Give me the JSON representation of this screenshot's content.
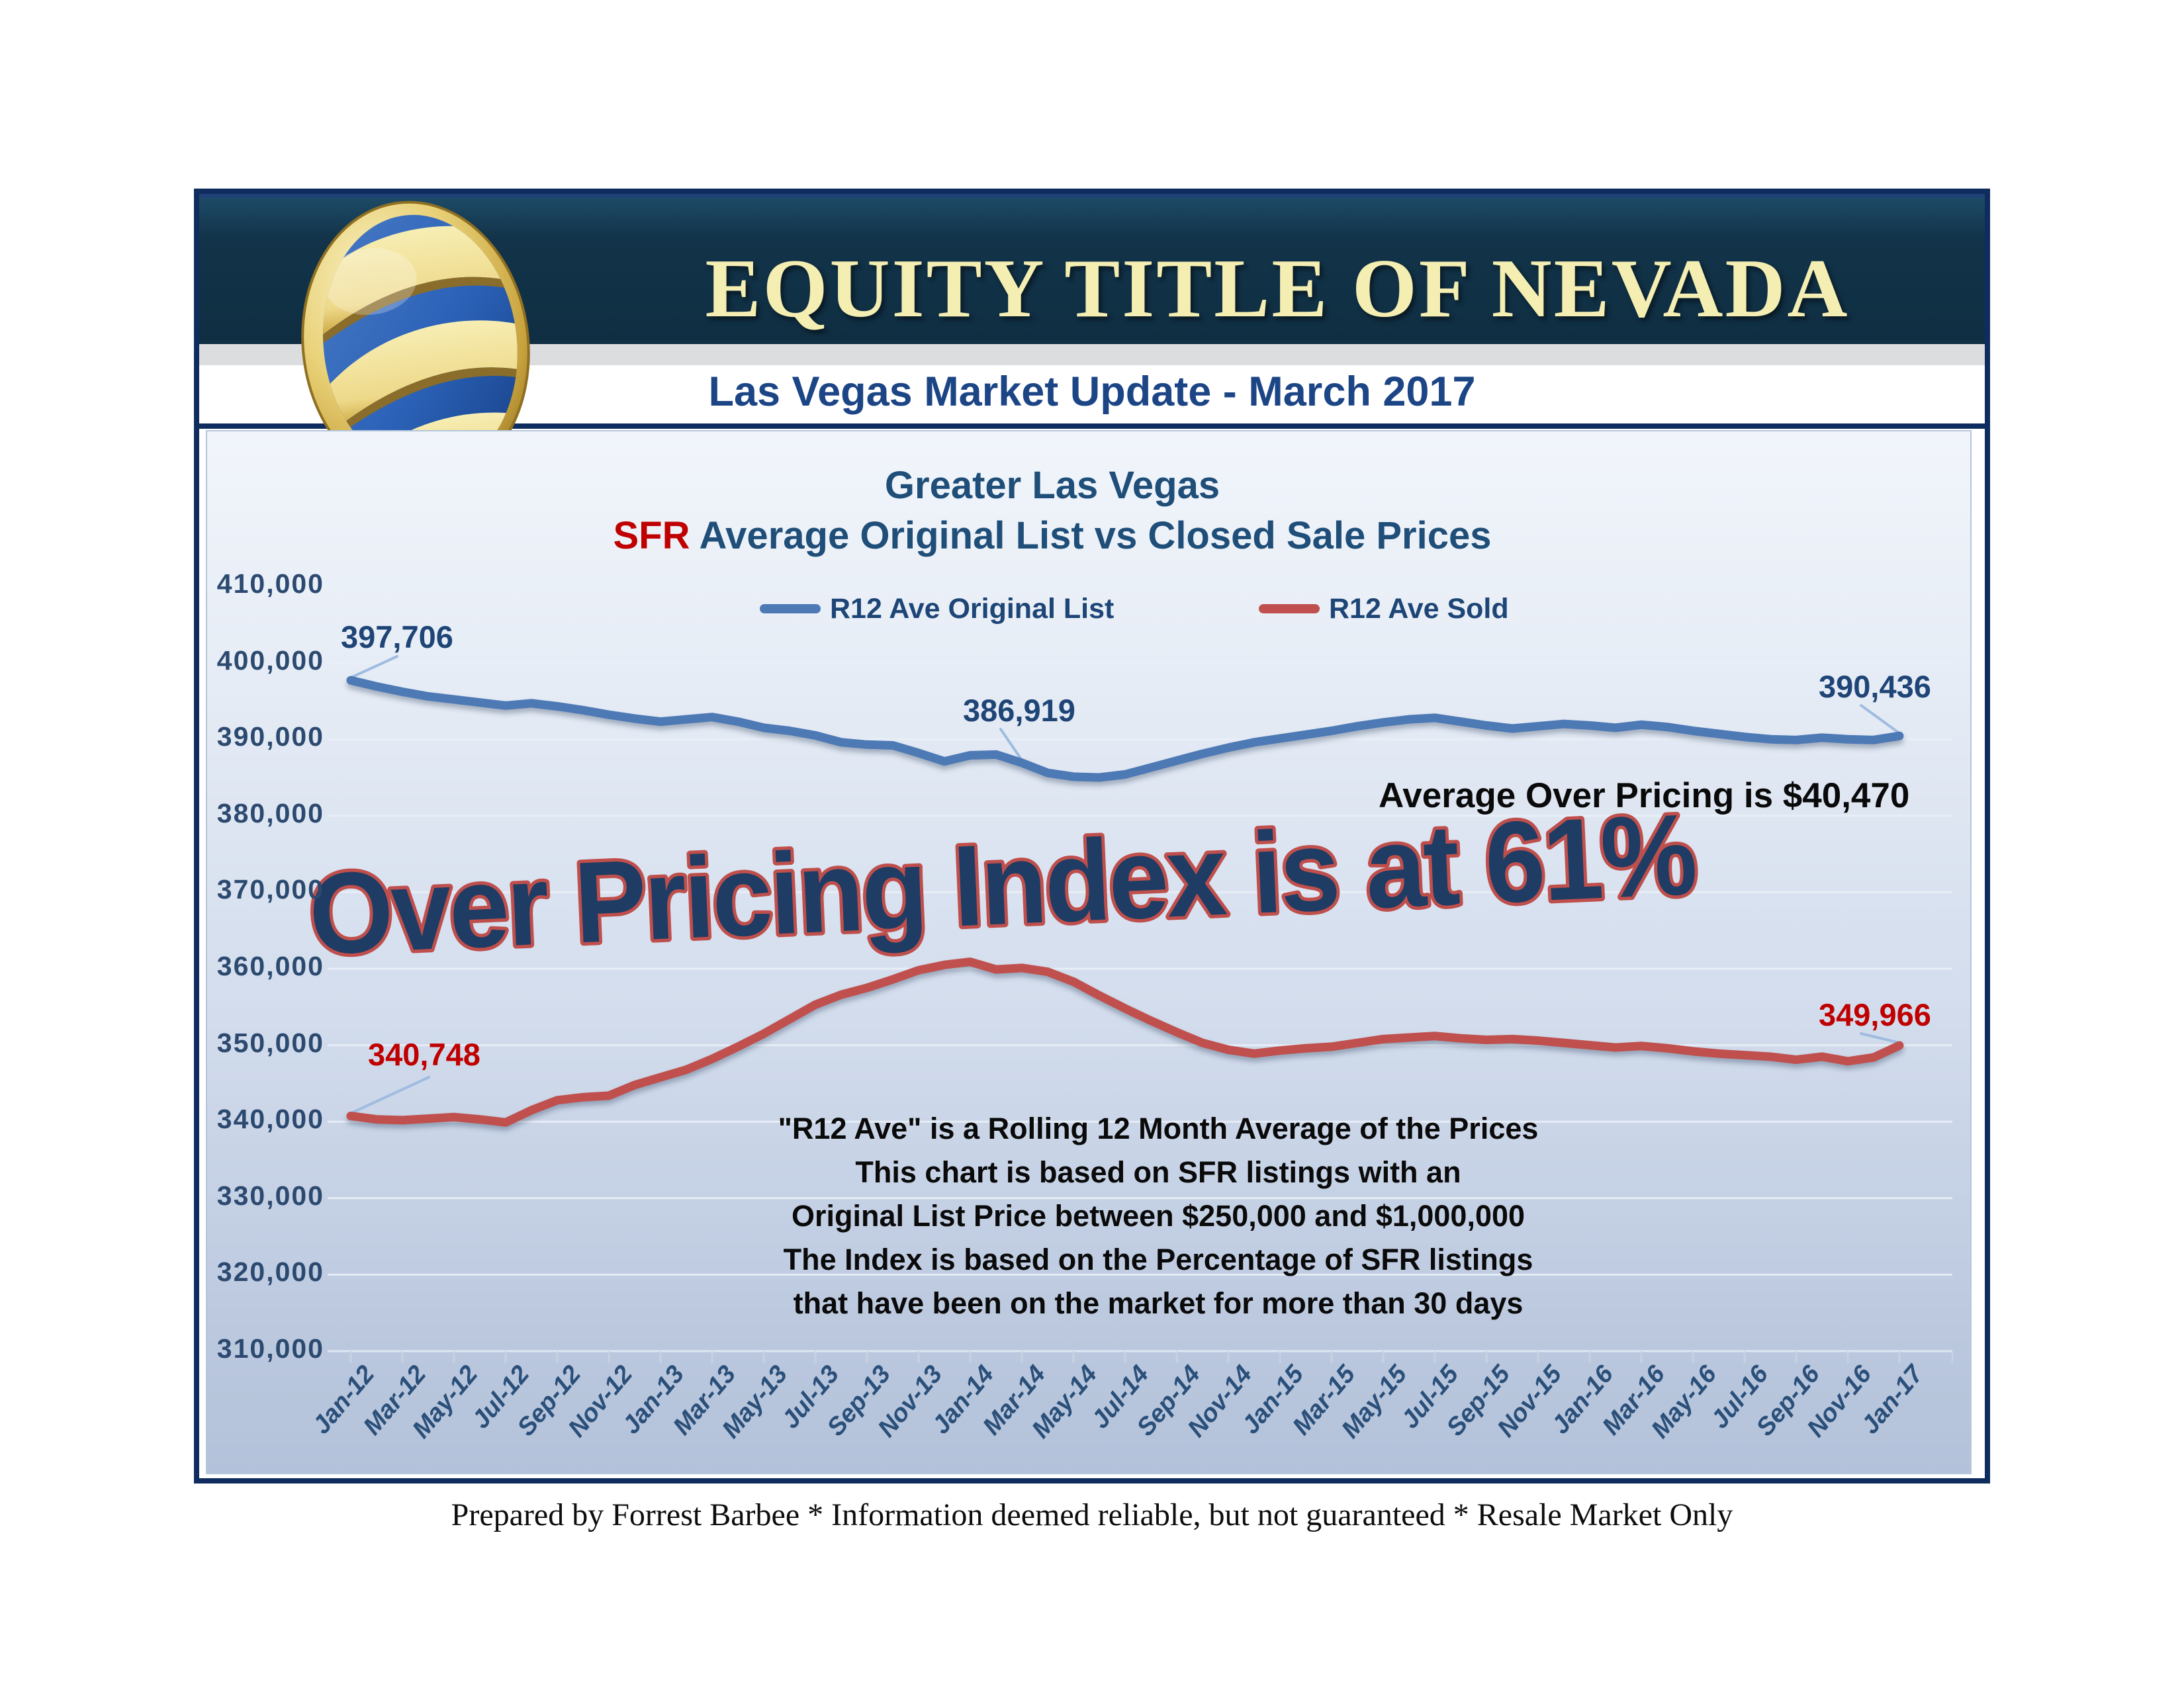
{
  "header": {
    "company": "EQUITY TITLE OF NEVADA",
    "subtitle": "Las Vegas Market Update - March 2017"
  },
  "footer": {
    "text": "Prepared by Forrest Barbee * Information deemed reliable, but not guaranteed * Resale Market Only"
  },
  "chart": {
    "title_line1": "Greater Las Vegas",
    "title_sfr": "SFR",
    "title_line2": " Average Original List vs Closed Sale Prices",
    "note": "Average Over Pricing is $40,470",
    "wordart": "Over Pricing Index is at 61%",
    "footnotes": [
      "\"R12 Ave\" is a Rolling 12 Month Average of the Prices",
      "This chart is based on SFR listings with an",
      "Original List Price between $250,000 and $1,000,000",
      "The Index is based on the Percentage of SFR listings",
      "that have been on the market for more than 30 days"
    ]
  },
  "chart_data": {
    "type": "line",
    "title": "Greater Las Vegas - SFR Average Original List vs Closed Sale Prices",
    "ylim": [
      310000,
      410000
    ],
    "grid": true,
    "legend_position": "top",
    "y_ticks": [
      410000,
      400000,
      390000,
      380000,
      370000,
      360000,
      350000,
      340000,
      330000,
      320000,
      310000
    ],
    "y_tick_labels": [
      "410,000",
      "400,000",
      "390,000",
      "380,000",
      "370,000",
      "360,000",
      "350,000",
      "340,000",
      "330,000",
      "320,000",
      "310,000"
    ],
    "x": [
      "Jan-12",
      "Feb-12",
      "Mar-12",
      "Apr-12",
      "May-12",
      "Jun-12",
      "Jul-12",
      "Aug-12",
      "Sep-12",
      "Oct-12",
      "Nov-12",
      "Dec-12",
      "Jan-13",
      "Feb-13",
      "Mar-13",
      "Apr-13",
      "May-13",
      "Jun-13",
      "Jul-13",
      "Aug-13",
      "Sep-13",
      "Oct-13",
      "Nov-13",
      "Dec-13",
      "Jan-14",
      "Feb-14",
      "Mar-14",
      "Apr-14",
      "May-14",
      "Jun-14",
      "Jul-14",
      "Aug-14",
      "Sep-14",
      "Oct-14",
      "Nov-14",
      "Dec-14",
      "Jan-15",
      "Feb-15",
      "Mar-15",
      "Apr-15",
      "May-15",
      "Jun-15",
      "Jul-15",
      "Aug-15",
      "Sep-15",
      "Oct-15",
      "Nov-15",
      "Dec-15",
      "Jan-16",
      "Feb-16",
      "Mar-16",
      "Apr-16",
      "May-16",
      "Jun-16",
      "Jul-16",
      "Aug-16",
      "Sep-16",
      "Oct-16",
      "Nov-16",
      "Dec-16",
      "Jan-17"
    ],
    "x_tick_labels": [
      "Jan-12",
      "Mar-12",
      "May-12",
      "Jul-12",
      "Sep-12",
      "Nov-12",
      "Jan-13",
      "Mar-13",
      "May-13",
      "Jul-13",
      "Sep-13",
      "Nov-13",
      "Jan-14",
      "Mar-14",
      "May-14",
      "Jul-14",
      "Sep-14",
      "Nov-14",
      "Jan-15",
      "Mar-15",
      "May-15",
      "Jul-15",
      "Sep-15",
      "Nov-15",
      "Jan-16",
      "Mar-16",
      "May-16",
      "Jul-16",
      "Sep-16",
      "Nov-16",
      "Jan-17"
    ],
    "series": [
      {
        "name": "R12 Ave Original List",
        "color": "#4d79b5",
        "values": [
          397706,
          396900,
          396200,
          395600,
          395200,
          394800,
          394400,
          394700,
          394300,
          393800,
          393200,
          392700,
          392300,
          392600,
          392900,
          392300,
          391500,
          391100,
          390500,
          389600,
          389300,
          389200,
          388200,
          387100,
          387900,
          388000,
          386919,
          385600,
          385100,
          385000,
          385400,
          386300,
          387200,
          388100,
          388900,
          389600,
          390100,
          390600,
          391100,
          391700,
          392200,
          392600,
          392800,
          392300,
          391800,
          391400,
          391700,
          392000,
          391800,
          391500,
          391900,
          391600,
          391100,
          390700,
          390300,
          390000,
          389900,
          390200,
          390000,
          389900,
          390436
        ]
      },
      {
        "name": "R12 Ave Sold",
        "color": "#c0504d",
        "values": [
          340748,
          340300,
          340200,
          340400,
          340600,
          340300,
          339900,
          341500,
          342800,
          343200,
          343400,
          344800,
          345800,
          346800,
          348200,
          349800,
          351500,
          353400,
          355300,
          356600,
          357500,
          358600,
          359800,
          360500,
          360900,
          359900,
          360100,
          359600,
          358300,
          356500,
          354800,
          353200,
          351700,
          350300,
          349400,
          348900,
          349300,
          349600,
          349800,
          350300,
          350800,
          351000,
          351200,
          350900,
          350700,
          350800,
          350600,
          350300,
          350000,
          349700,
          349900,
          349600,
          349200,
          348900,
          348700,
          348500,
          348100,
          348500,
          347900,
          348400,
          349966
        ]
      }
    ],
    "point_labels": [
      {
        "series": 0,
        "index": 0,
        "text": "397,706"
      },
      {
        "series": 0,
        "index": 26,
        "text": "386,919"
      },
      {
        "series": 0,
        "index": 60,
        "text": "390,436"
      },
      {
        "series": 1,
        "index": 0,
        "text": "340,748"
      },
      {
        "series": 1,
        "index": 60,
        "text": "349,966"
      }
    ]
  }
}
